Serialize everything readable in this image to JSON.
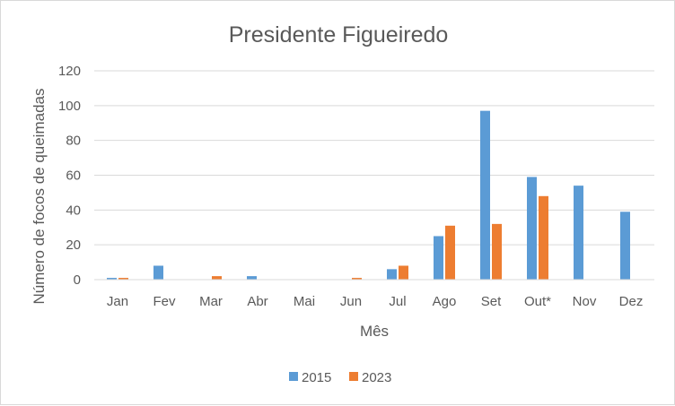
{
  "chart_data": {
    "type": "bar",
    "title": "Presidente Figueiredo",
    "xlabel": "Mês",
    "ylabel": "Número de focos de queimadas",
    "categories": [
      "Jan",
      "Fev",
      "Mar",
      "Abr",
      "Mai",
      "Jun",
      "Jul",
      "Ago",
      "Set",
      "Out*",
      "Nov",
      "Dez"
    ],
    "series": [
      {
        "name": "2015",
        "color": "#5b9bd5",
        "values": [
          1,
          8,
          0,
          2,
          0,
          0,
          6,
          25,
          97,
          59,
          54,
          39
        ]
      },
      {
        "name": "2023",
        "color": "#ed7d31",
        "values": [
          1,
          0,
          2,
          0,
          0,
          1,
          8,
          31,
          32,
          48,
          0,
          0
        ]
      }
    ],
    "ylim": [
      0,
      120
    ],
    "yticks": [
      0,
      20,
      40,
      60,
      80,
      100,
      120
    ],
    "grid": true,
    "legend": "bottom"
  }
}
